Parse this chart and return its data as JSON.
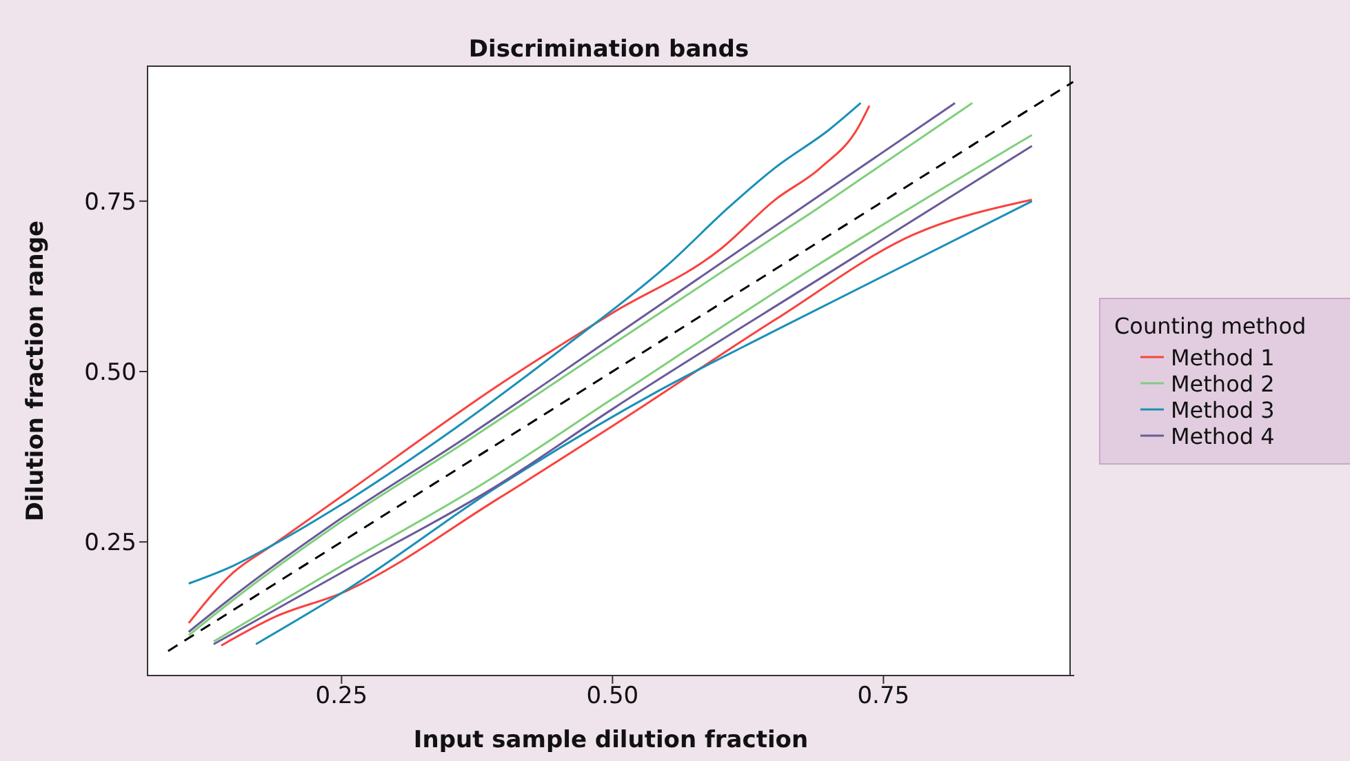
{
  "chart_data": {
    "type": "line",
    "title": "Discrimination bands",
    "xlabel": "Input sample dilution fraction",
    "ylabel": "Dilution fraction range",
    "legend_title": "Counting method",
    "legend": "right",
    "marker": "none",
    "xlim": [
      0.071,
      0.926
    ],
    "ylim": [
      0.054,
      0.948
    ],
    "xticks": [
      {
        "value": 0.25,
        "label": "0.25"
      },
      {
        "value": 0.5,
        "label": "0.50"
      },
      {
        "value": 0.75,
        "label": "0.75"
      }
    ],
    "yticks": [
      {
        "value": 0.25,
        "label": "0.25"
      },
      {
        "value": 0.5,
        "label": "0.50"
      },
      {
        "value": 0.75,
        "label": "0.75"
      }
    ],
    "series": [
      {
        "name": "Method 1",
        "color": "#f8433f",
        "x": [
          0.109,
          0.15,
          0.186,
          0.25,
          0.394,
          0.5,
          0.6,
          0.65,
          0.692,
          0.727,
          0.737
        ],
        "values": [
          0.131,
          0.205,
          0.245,
          0.317,
          0.479,
          0.586,
          0.68,
          0.752,
          0.799,
          0.859,
          0.89
        ]
      },
      {
        "name": "Method 2",
        "color": "#7fcf7a",
        "x": [
          0.109,
          0.15,
          0.25,
          0.356,
          0.5,
          0.688,
          0.832
        ],
        "values": [
          0.113,
          0.165,
          0.28,
          0.388,
          0.54,
          0.738,
          0.894
        ]
      },
      {
        "name": "Method 3",
        "color": "#1a90b8",
        "x": [
          0.109,
          0.15,
          0.186,
          0.25,
          0.356,
          0.458,
          0.55,
          0.608,
          0.65,
          0.7,
          0.729
        ],
        "values": [
          0.189,
          0.215,
          0.245,
          0.305,
          0.418,
          0.539,
          0.655,
          0.742,
          0.799,
          0.855,
          0.894
        ]
      },
      {
        "name": "Method 4",
        "color": "#6a5a9a",
        "x": [
          0.109,
          0.15,
          0.25,
          0.356,
          0.5,
          0.676,
          0.816
        ],
        "values": [
          0.118,
          0.17,
          0.285,
          0.394,
          0.55,
          0.742,
          0.894
        ]
      },
      {
        "color": "#f8433f",
        "x": [
          0.139,
          0.19,
          0.25,
          0.394,
          0.5,
          0.65,
          0.778,
          0.887
        ],
        "values": [
          0.098,
          0.141,
          0.175,
          0.313,
          0.42,
          0.576,
          0.701,
          0.752
        ]
      },
      {
        "color": "#7fcf7a",
        "x": [
          0.132,
          0.25,
          0.382,
          0.5,
          0.688,
          0.887
        ],
        "values": [
          0.104,
          0.215,
          0.337,
          0.46,
          0.655,
          0.847
        ]
      },
      {
        "color": "#1a90b8",
        "x": [
          0.171,
          0.25,
          0.394,
          0.544,
          0.65,
          0.887
        ],
        "values": [
          0.1,
          0.175,
          0.331,
          0.473,
          0.56,
          0.75
        ]
      },
      {
        "color": "#6a5a9a",
        "x": [
          0.132,
          0.25,
          0.394,
          0.5,
          0.7,
          0.887
        ],
        "values": [
          0.1,
          0.205,
          0.333,
          0.445,
          0.645,
          0.831
        ]
      },
      {
        "color": "#000000",
        "line_style": "dashed",
        "x": [
          0.09,
          0.925
        ],
        "values": [
          0.09,
          0.925
        ]
      }
    ]
  }
}
